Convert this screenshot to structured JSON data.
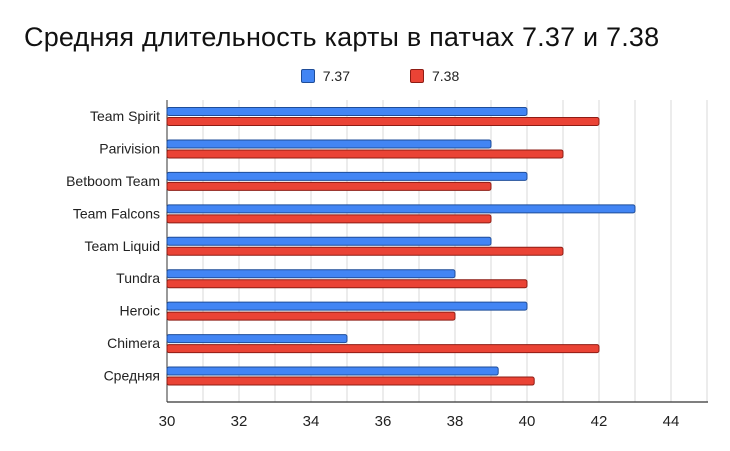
{
  "chart_data": {
    "type": "bar",
    "orientation": "horizontal",
    "title": "Средняя длительность карты в патчах 7.37 и 7.38",
    "xlabel": "",
    "ylabel": "",
    "xlim": [
      30,
      44
    ],
    "x_ticks": [
      30,
      32,
      34,
      36,
      38,
      40,
      42,
      44
    ],
    "grid": true,
    "legend_position": "top",
    "categories": [
      "Team Spirit",
      "Parivision",
      "Betboom Team",
      "Team Falcons",
      "Team Liquid",
      "Tundra",
      "Heroic",
      "Chimera",
      "Средняя"
    ],
    "series": [
      {
        "name": "7.37",
        "color": "#4285f4",
        "stroke": "#1f4d99",
        "values": [
          40,
          39,
          40,
          43,
          39,
          38,
          40,
          35,
          39.2
        ]
      },
      {
        "name": "7.38",
        "color": "#ea4335",
        "stroke": "#8e1c14",
        "values": [
          42,
          41,
          39,
          39,
          41,
          40,
          38,
          42,
          40.2
        ]
      }
    ]
  }
}
